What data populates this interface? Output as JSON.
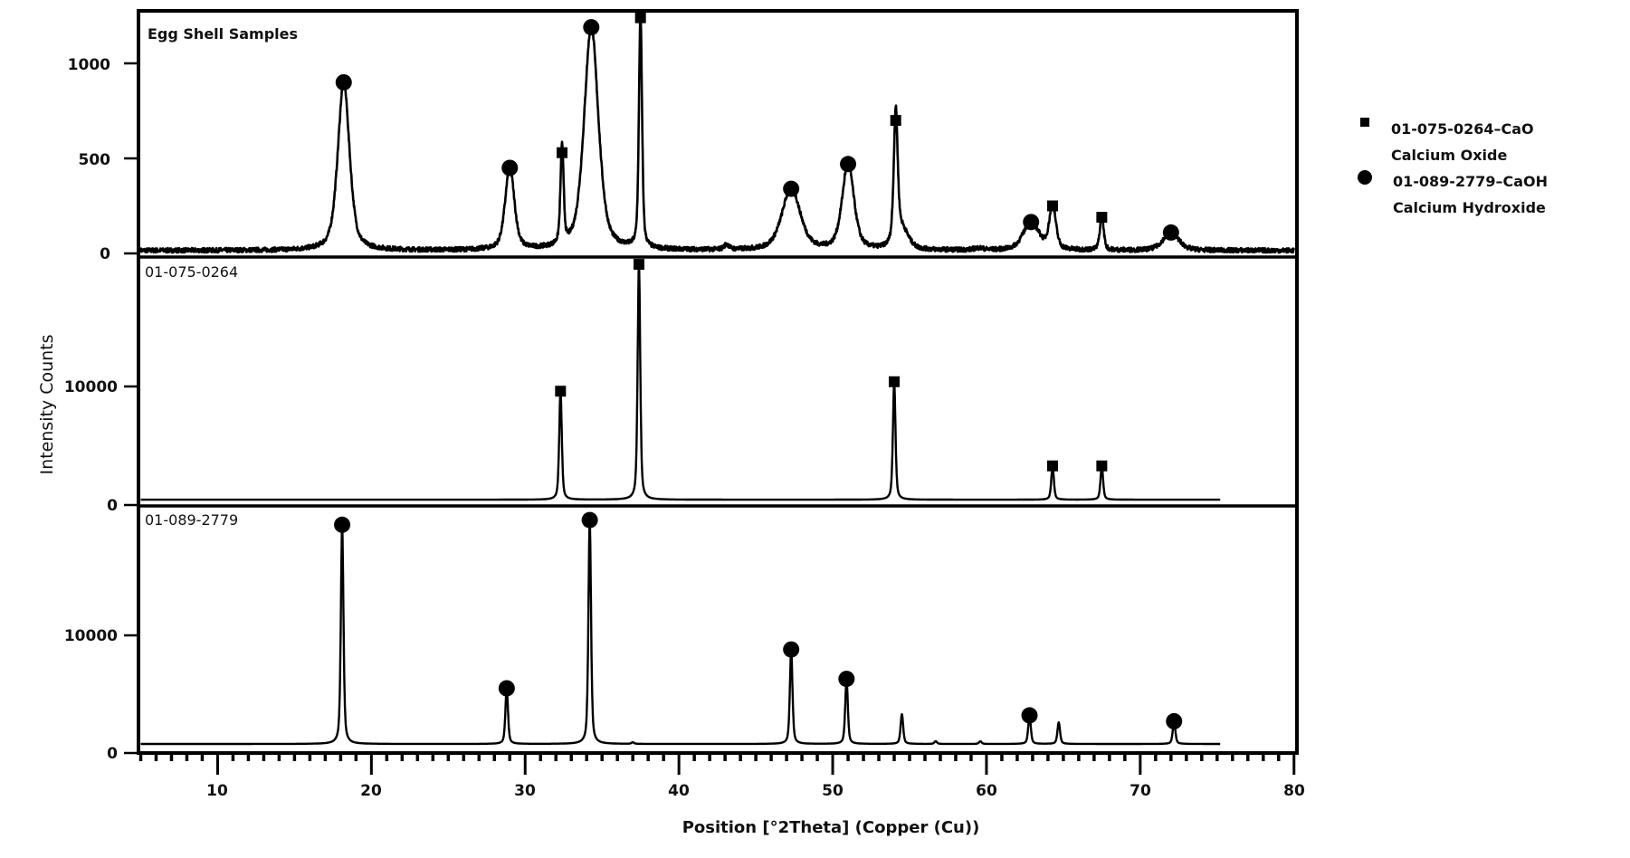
{
  "chart_data": {
    "type": "line",
    "title": "",
    "xlabel": "Position [°2Theta] (Copper (Cu))",
    "ylabel": "Intensity Counts",
    "xlim": [
      5,
      80
    ],
    "x_ticks": [
      10,
      20,
      30,
      40,
      50,
      60,
      70,
      80
    ],
    "x_minor_step": 1,
    "legend": {
      "position": "right",
      "entries": [
        {
          "marker": "square",
          "label": "01-075-0264–CaO",
          "sublabel": "Calcium Oxide"
        },
        {
          "marker": "circle",
          "label": "01-089-2779–CaOH",
          "sublabel": "Calcium Hydroxide"
        }
      ]
    },
    "panels": [
      {
        "name": "Egg Shell Samples",
        "ylim": [
          0,
          1250
        ],
        "y_ticks": [
          0,
          500,
          1000
        ],
        "baseline": 15,
        "x_end": 80,
        "noise": 12,
        "peaks": [
          {
            "x": 18.2,
            "y": 900,
            "width": 0.45,
            "marker": "circle"
          },
          {
            "x": 29.0,
            "y": 450,
            "width": 0.35,
            "marker": "circle"
          },
          {
            "x": 32.4,
            "y": 530,
            "width": 0.12,
            "marker": "square"
          },
          {
            "x": 34.3,
            "y": 1190,
            "width": 0.55,
            "marker": "circle"
          },
          {
            "x": 37.5,
            "y": 1240,
            "width": 0.12,
            "marker": "square"
          },
          {
            "x": 43.1,
            "y": 40,
            "width": 0.2,
            "marker": null
          },
          {
            "x": 47.3,
            "y": 340,
            "width": 0.7,
            "marker": "circle"
          },
          {
            "x": 51.0,
            "y": 470,
            "width": 0.45,
            "marker": "circle"
          },
          {
            "x": 54.1,
            "y": 700,
            "width": 0.15,
            "marker": "square"
          },
          {
            "x": 54.5,
            "y": 120,
            "width": 0.5,
            "marker": null
          },
          {
            "x": 59.5,
            "y": 25,
            "width": 0.35,
            "marker": null
          },
          {
            "x": 62.9,
            "y": 165,
            "width": 0.6,
            "marker": "circle"
          },
          {
            "x": 64.3,
            "y": 250,
            "width": 0.25,
            "marker": "square"
          },
          {
            "x": 67.5,
            "y": 190,
            "width": 0.15,
            "marker": "square"
          },
          {
            "x": 72.0,
            "y": 110,
            "width": 0.6,
            "marker": "circle"
          }
        ]
      },
      {
        "name": "01-075-0264",
        "ylim": [
          0,
          20500
        ],
        "y_ticks": [
          0,
          10000
        ],
        "baseline": 450,
        "x_end": 75.2,
        "noise": 0,
        "peaks": [
          {
            "x": 32.3,
            "y": 9600,
            "width": 0.1,
            "marker": "square"
          },
          {
            "x": 37.4,
            "y": 20300,
            "width": 0.1,
            "marker": "square"
          },
          {
            "x": 54.0,
            "y": 10400,
            "width": 0.1,
            "marker": "square"
          },
          {
            "x": 64.3,
            "y": 3300,
            "width": 0.1,
            "marker": "square"
          },
          {
            "x": 67.5,
            "y": 3300,
            "width": 0.1,
            "marker": "square"
          }
        ]
      },
      {
        "name": "01-089-2779",
        "ylim": [
          0,
          20500
        ],
        "y_ticks": [
          0,
          10000
        ],
        "baseline": 770,
        "x_end": 75.2,
        "noise": 0,
        "peaks": [
          {
            "x": 18.1,
            "y": 19400,
            "width": 0.1,
            "marker": "circle"
          },
          {
            "x": 28.8,
            "y": 5500,
            "width": 0.1,
            "marker": "circle"
          },
          {
            "x": 34.2,
            "y": 19800,
            "width": 0.1,
            "marker": "circle"
          },
          {
            "x": 37.0,
            "y": 900,
            "width": 0.1,
            "marker": null
          },
          {
            "x": 47.3,
            "y": 8800,
            "width": 0.1,
            "marker": "circle"
          },
          {
            "x": 50.9,
            "y": 6300,
            "width": 0.1,
            "marker": "circle"
          },
          {
            "x": 54.5,
            "y": 3300,
            "width": 0.1,
            "marker": null
          },
          {
            "x": 56.7,
            "y": 1000,
            "width": 0.1,
            "marker": null
          },
          {
            "x": 59.6,
            "y": 1000,
            "width": 0.1,
            "marker": null
          },
          {
            "x": 62.8,
            "y": 3200,
            "width": 0.1,
            "marker": "circle"
          },
          {
            "x": 64.7,
            "y": 2600,
            "width": 0.1,
            "marker": null
          },
          {
            "x": 72.2,
            "y": 2700,
            "width": 0.1,
            "marker": "circle"
          }
        ]
      }
    ]
  },
  "labels": {
    "xlabel": "Position [°2Theta] (Copper (Cu))",
    "ylabel": "Intensity Counts",
    "panel_top": "Egg Shell Samples",
    "panel_mid": "01-075-0264",
    "panel_bot": "01-089-2779",
    "legend_cao_1": "01-075-0264–CaO",
    "legend_cao_2": "Calcium Oxide",
    "legend_caoh_1": "01-089-2779–CaOH",
    "legend_caoh_2": "Calcium Hydroxide",
    "ytick_top": [
      "0",
      "500",
      "1000"
    ],
    "ytick_mid": [
      "0",
      "10000"
    ],
    "ytick_bot": [
      "0",
      "10000"
    ],
    "xticks": [
      "10",
      "20",
      "30",
      "40",
      "50",
      "60",
      "70",
      "80"
    ]
  },
  "colors": {
    "line": "#000000",
    "background": "#ffffff"
  }
}
